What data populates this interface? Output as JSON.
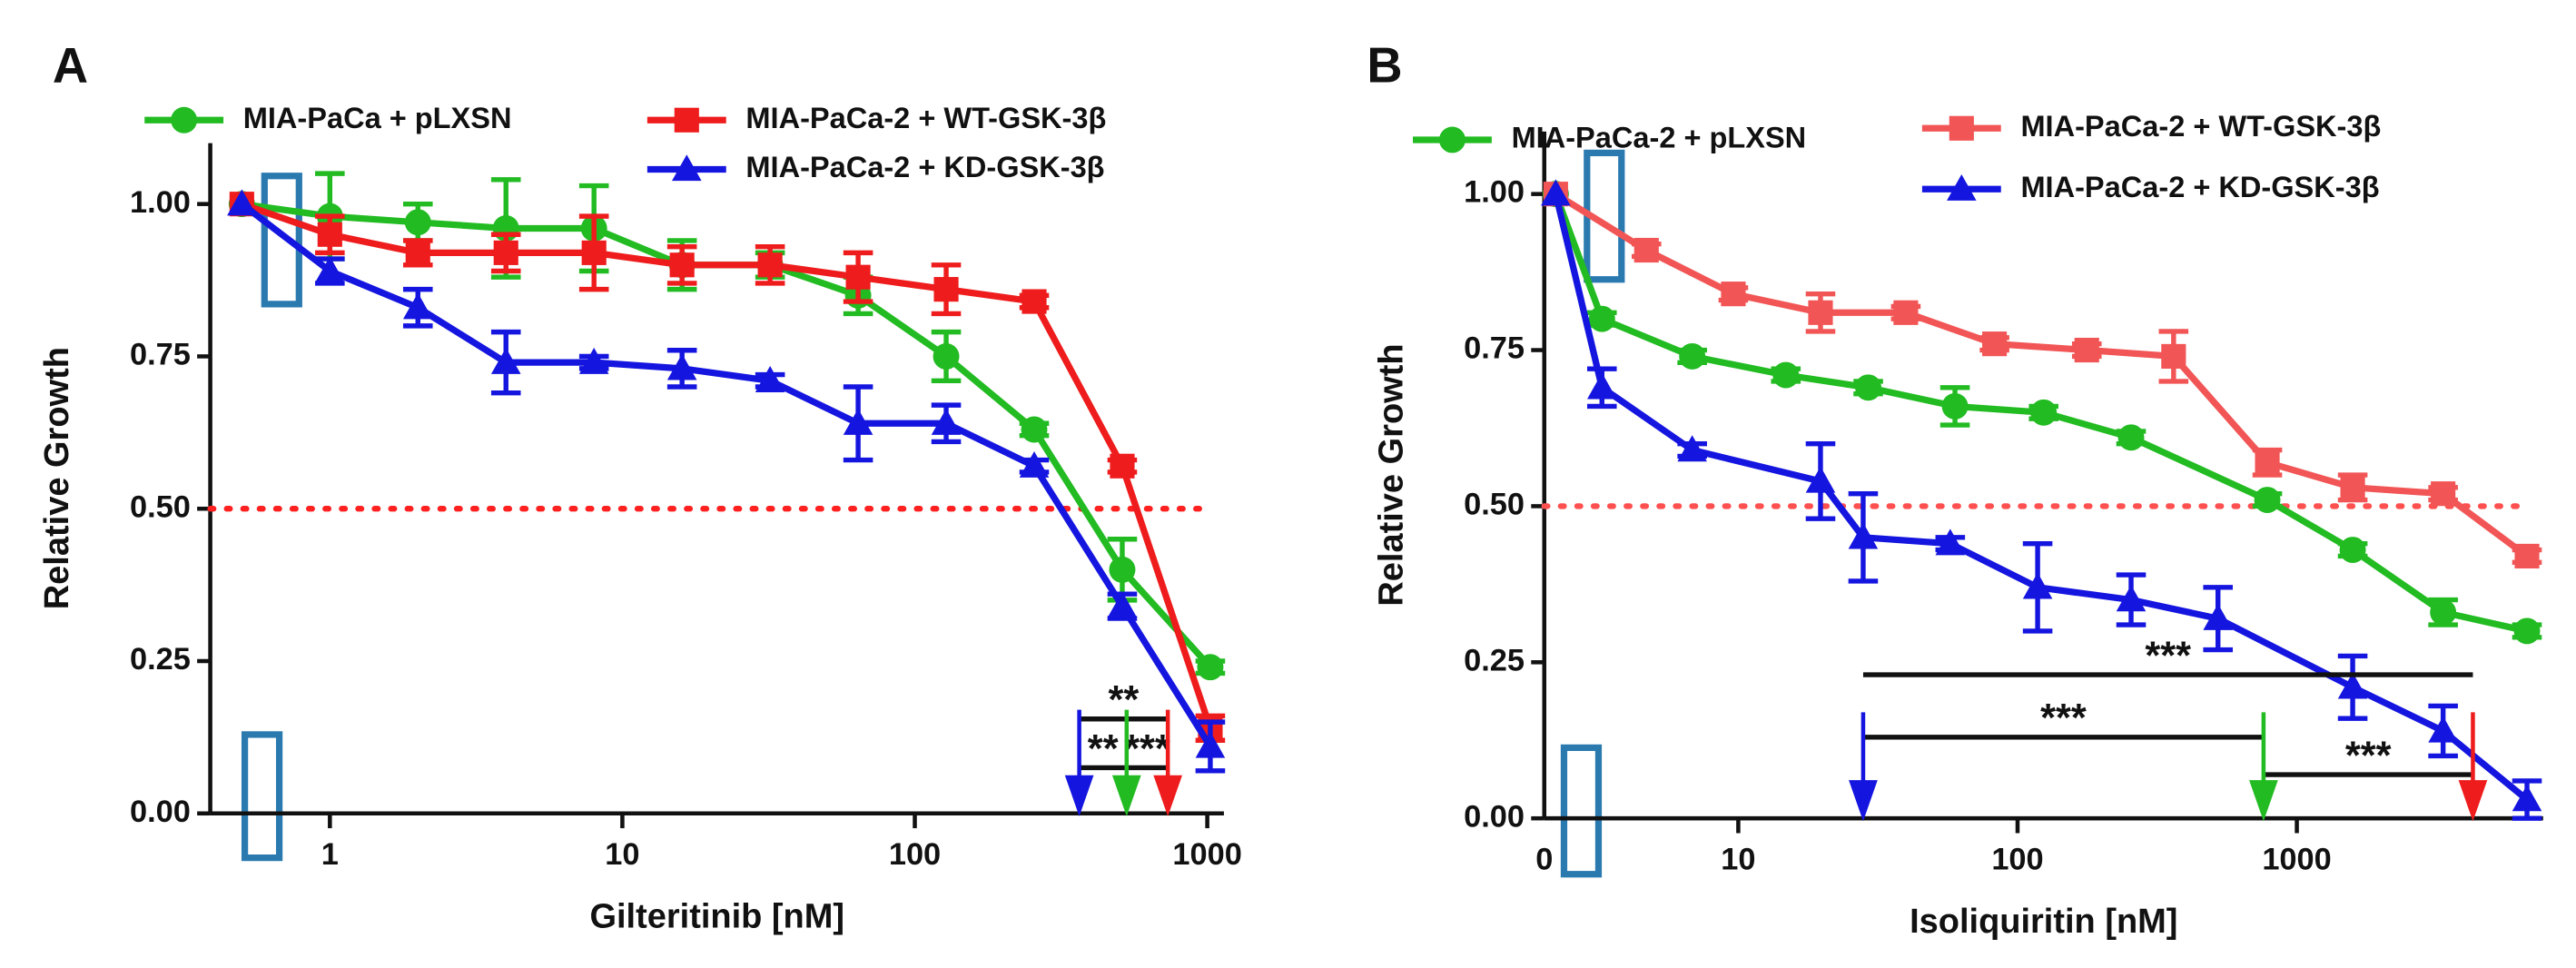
{
  "chart_data": [
    {
      "type": "line",
      "panel_label": "A",
      "xlabel": "Gilteritinib [nM]",
      "ylabel": "Relative Growth",
      "xscale": "log",
      "xlim": [
        0.39,
        1140
      ],
      "ylim": [
        0,
        1.1
      ],
      "xticks": [
        1,
        10,
        100,
        1000
      ],
      "yticks": [
        {
          "value": 0,
          "label": "0.00"
        },
        0.25,
        {
          "value": 0.5,
          "label": "0.50"
        },
        0.75,
        {
          "value": 1,
          "label": "1.00"
        }
      ],
      "x": [
        0.5,
        1,
        2,
        4,
        8,
        16,
        32,
        64,
        128,
        256,
        512,
        1024
      ],
      "reference_line": {
        "value": 0.5,
        "color": "#ff2020"
      },
      "series": [
        {
          "name": "MIA-PaCa + pLXSN",
          "color": "#22bb22",
          "marker": "circle",
          "values": [
            1.0,
            0.98,
            0.97,
            0.96,
            0.96,
            0.9,
            0.9,
            0.85,
            0.75,
            0.63,
            0.4,
            0.24
          ],
          "errors": [
            0,
            0.07,
            0.03,
            0.08,
            0.07,
            0.04,
            0.02,
            0.03,
            0.04,
            0.01,
            0.05,
            0.01
          ]
        },
        {
          "name": "MIA-PaCa-2 + WT-GSK-3β",
          "color": "#ee1c1c",
          "marker": "square",
          "values": [
            1.0,
            0.95,
            0.92,
            0.92,
            0.92,
            0.9,
            0.9,
            0.88,
            0.86,
            0.84,
            0.57,
            0.14
          ],
          "errors": [
            0,
            0.03,
            0.02,
            0.03,
            0.06,
            0.03,
            0.03,
            0.04,
            0.04,
            0.01,
            0.01,
            0.02
          ]
        },
        {
          "name": "MIA-PaCa-2 + KD-GSK-3β",
          "color": "#1515e0",
          "marker": "triangle",
          "values": [
            1.0,
            0.89,
            0.83,
            0.74,
            0.74,
            0.73,
            0.71,
            0.64,
            0.64,
            0.57,
            0.34,
            0.11
          ],
          "errors": [
            0,
            0.02,
            0.03,
            0.05,
            0.01,
            0.03,
            0.01,
            0.06,
            0.03,
            0.01,
            0.02,
            0.04
          ]
        }
      ],
      "arrows": [
        {
          "x": 365,
          "color": "#1515e0"
        },
        {
          "x": 530,
          "color": "#22bb22"
        },
        {
          "x": 733,
          "color": "#ee1c1c"
        }
      ],
      "brackets": [
        {
          "x": [
            365,
            733
          ],
          "y": 0.155,
          "label": "**"
        },
        {
          "x": [
            365,
            530
          ],
          "y": 0.075,
          "label": "**"
        },
        {
          "x": [
            530,
            733
          ],
          "y": 0.075,
          "label": "***"
        }
      ]
    },
    {
      "type": "line",
      "panel_label": "B",
      "xlabel": "Isoliquiritin [nM]",
      "ylabel": "Relative Growth",
      "xscale": "log",
      "xlim": [
        2.02,
        7620
      ],
      "ylim": [
        0,
        1.1
      ],
      "x_zero_label": "0",
      "xticks": [
        10,
        100,
        1000
      ],
      "yticks": [
        {
          "value": 0,
          "label": "0.00"
        },
        0.25,
        {
          "value": 0.5,
          "label": "0.50"
        },
        0.75,
        {
          "value": 1,
          "label": "1.00"
        }
      ],
      "reference_line": {
        "value": 0.5,
        "color": "#ff5050"
      },
      "series": [
        {
          "name": "MIA-PaCa-2 + pLXSN",
          "color": "#22bb22",
          "marker": "circle",
          "x": [
            2.22,
            3.25,
            6.84,
            14.8,
            29.2,
            59.7,
            124,
            255,
            784,
            1585,
            3340,
            6670
          ],
          "values": [
            1.0,
            0.8,
            0.74,
            0.71,
            0.69,
            0.66,
            0.65,
            0.61,
            0.51,
            0.43,
            0.33,
            0.3
          ],
          "errors": [
            0,
            0.01,
            0.01,
            0.01,
            0.01,
            0.03,
            0.01,
            0.01,
            0.01,
            0.01,
            0.02,
            0.01
          ]
        },
        {
          "name": "MIA-PaCa-2 + WT-GSK-3β",
          "color": "#f25555",
          "marker": "square",
          "x": [
            2.22,
            4.69,
            9.6,
            19.7,
            39.8,
            82.7,
            177,
            362,
            784,
            1585,
            3340,
            6670
          ],
          "values": [
            1.0,
            0.91,
            0.84,
            0.81,
            0.81,
            0.76,
            0.75,
            0.74,
            0.57,
            0.53,
            0.52,
            0.42
          ],
          "errors": [
            0,
            0.01,
            0.01,
            0.03,
            0.01,
            0.01,
            0.01,
            0.04,
            0.02,
            0.02,
            0.01,
            0.01
          ]
        },
        {
          "name": "MIA-PaCa-2 + KD-GSK-3β",
          "color": "#1515e0",
          "marker": "triangle",
          "x": [
            2.22,
            3.25,
            6.84,
            19.7,
            28,
            57.4,
            118,
            255,
            522,
            1585,
            3340,
            6670
          ],
          "values": [
            1.0,
            0.69,
            0.59,
            0.54,
            0.45,
            0.44,
            0.37,
            0.35,
            0.32,
            0.21,
            0.14,
            0.03
          ],
          "errors": [
            0,
            0.03,
            0.01,
            0.06,
            0.07,
            0.01,
            0.07,
            0.04,
            0.05,
            0.05,
            0.04,
            0.03
          ]
        }
      ],
      "arrows": [
        {
          "x": 28,
          "color": "#1515e0"
        },
        {
          "x": 760,
          "color": "#22bb22"
        },
        {
          "x": 4270,
          "color": "#ee1c1c"
        }
      ],
      "brackets": [
        {
          "x": [
            28,
            4270
          ],
          "y": 0.23,
          "label": "***"
        },
        {
          "x": [
            28,
            760
          ],
          "y": 0.13,
          "label": "***"
        },
        {
          "x": [
            760,
            4270
          ],
          "y": 0.07,
          "label": "***"
        }
      ]
    }
  ]
}
